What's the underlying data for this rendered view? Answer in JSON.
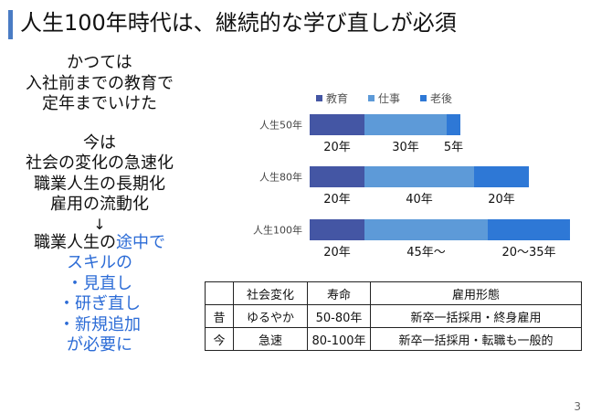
{
  "title": "人生100年時代は、継続的な学び直しが必須",
  "left": {
    "past_lines": [
      "かつては",
      "入社前までの教育で",
      "定年までいけた"
    ],
    "now_lines": [
      "今は",
      "社会の変化の急速化",
      "職業人生の長期化",
      "雇用の流動化"
    ],
    "arrow": "↓",
    "conclusion": {
      "line1_prefix": "職業人生の",
      "line1_highlight": "途中で",
      "lines": [
        "スキルの",
        "・見直し",
        "・研ぎ直し",
        "・新規追加",
        "が必要に"
      ]
    }
  },
  "chart_data": {
    "type": "bar",
    "orientation": "horizontal",
    "stacked": true,
    "categories": [
      "人生50年",
      "人生80年",
      "人生100年"
    ],
    "series": [
      {
        "name": "教育",
        "values": [
          20,
          20,
          20
        ],
        "color": "#4456a4"
      },
      {
        "name": "仕事",
        "values": [
          30,
          40,
          45
        ],
        "color": "#5d9ad8"
      },
      {
        "name": "老後",
        "values": [
          5,
          20,
          30
        ],
        "color": "#2e78d6"
      }
    ],
    "data_labels": [
      [
        "20年",
        "30年",
        "5年"
      ],
      [
        "20年",
        "40年",
        "20年"
      ],
      [
        "20年",
        "45年〜",
        "20〜35年"
      ]
    ],
    "legend_position": "top",
    "xlim": [
      0,
      95
    ],
    "grid": false
  },
  "table": {
    "headers": [
      "",
      "社会変化",
      "寿命",
      "雇用形態"
    ],
    "rows": [
      [
        "昔",
        "ゆるやか",
        "50-80年",
        "新卒一括採用・終身雇用"
      ],
      [
        "今",
        "急速",
        "80-100年",
        "新卒一括採用・転職も一般的"
      ]
    ]
  },
  "page_number": "3"
}
